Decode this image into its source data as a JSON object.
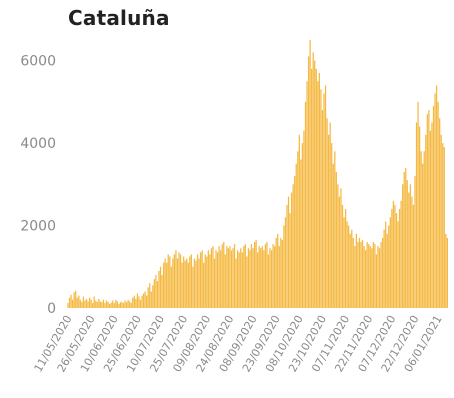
{
  "chart_data": {
    "type": "bar",
    "title": "Cataluña",
    "xlabel": "",
    "ylabel": "",
    "ylim": [
      0,
      6500
    ],
    "yticks": [
      "0",
      "2000",
      "4000",
      "6000"
    ],
    "ytick_values": [
      0,
      2000,
      4000,
      6000
    ],
    "bar_color": "#f5b942",
    "grid": false,
    "start_date": "2020-05-11",
    "end_date": "2021-01-15",
    "xtick_labels": [
      "11/05/2020",
      "26/05/2020",
      "10/06/2020",
      "25/06/2020",
      "10/07/2020",
      "25/07/2020",
      "09/08/2020",
      "24/08/2020",
      "08/09/2020",
      "23/09/2020",
      "08/10/2020",
      "23/10/2020",
      "07/11/2020",
      "22/11/2020",
      "07/12/2020",
      "22/12/2020",
      "06/01/2021"
    ],
    "values": [
      120,
      250,
      320,
      200,
      380,
      420,
      250,
      300,
      200,
      150,
      280,
      180,
      220,
      160,
      250,
      200,
      120,
      280,
      180,
      150,
      220,
      160,
      140,
      200,
      120,
      180,
      150,
      100,
      130,
      180,
      120,
      200,
      160,
      100,
      140,
      150,
      120,
      180,
      140,
      200,
      160,
      120,
      250,
      300,
      220,
      350,
      280,
      200,
      300,
      350,
      400,
      300,
      500,
      600,
      400,
      550,
      700,
      800,
      650,
      900,
      1000,
      800,
      1100,
      1200,
      1100,
      1300,
      1250,
      1000,
      1200,
      1300,
      1400,
      1200,
      1350,
      1300,
      1100,
      1250,
      1150,
      1200,
      1100,
      1250,
      1300,
      1000,
      1200,
      1150,
      1300,
      1200,
      1350,
      1400,
      1100,
      1300,
      1250,
      1400,
      1300,
      1450,
      1500,
      1200,
      1400,
      1350,
      1500,
      1400,
      1550,
      1600,
      1300,
      1500,
      1450,
      1500,
      1400,
      1450,
      1550,
      1200,
      1400,
      1350,
      1450,
      1350,
      1500,
      1550,
      1250,
      1450,
      1400,
      1550,
      1450,
      1600,
      1650,
      1350,
      1500,
      1450,
      1500,
      1400,
      1550,
      1600,
      1300,
      1450,
      1400,
      1550,
      1500,
      1700,
      1800,
      1500,
      1700,
      1650,
      2000,
      2200,
      2500,
      2700,
      2300,
      2800,
      3000,
      3200,
      3500,
      3800,
      4200,
      3600,
      4000,
      4300,
      5000,
      5500,
      6100,
      6500,
      5800,
      6200,
      6000,
      5800,
      5500,
      5700,
      5300,
      4800,
      5200,
      5400,
      4600,
      4200,
      4500,
      4000,
      3500,
      3800,
      3300,
      3000,
      2700,
      2900,
      2500,
      2200,
      2400,
      2100,
      2000,
      1800,
      1900,
      1700,
      1500,
      1800,
      1600,
      1700,
      1600,
      1650,
      1500,
      1400,
      1600,
      1550,
      1500,
      1450,
      1600,
      1550,
      1300,
      1500,
      1450,
      1600,
      1700,
      1900,
      2100,
      1800,
      2000,
      2200,
      2400,
      2600,
      2500,
      2300,
      2100,
      2400,
      2600,
      3000,
      3300,
      3400,
      3100,
      2800,
      3000,
      2700,
      2500,
      3200,
      4500,
      5000,
      4400,
      3800,
      3500,
      3800,
      4200,
      4700,
      4800,
      4300,
      4500,
      4900,
      5200,
      5400,
      5000,
      4600,
      4200,
      4000,
      3900,
      1800,
      1700
    ]
  }
}
